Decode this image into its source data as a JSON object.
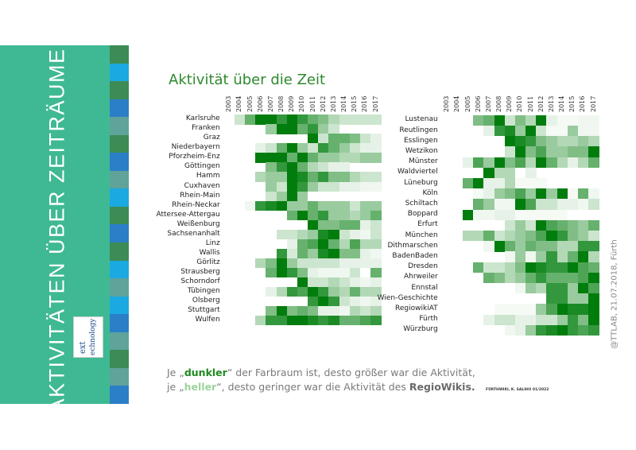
{
  "sidebar": {
    "title": "AKTIVITÄTEN ÜBER ZEITRÄUME",
    "logo_text": [
      "ext",
      "echnology"
    ],
    "background": "#3fb993",
    "stripe_colors": [
      "#3d8b55",
      "#1aa9e0",
      "#3d8b55",
      "#2b7fc7",
      "#5fa39a",
      "#3d8b55",
      "#2b7fc7",
      "#5fa39a",
      "#1aa9e0",
      "#3d8b55",
      "#2b7fc7",
      "#3d8b55",
      "#1aa9e0",
      "#5fa39a",
      "#1aa9e0",
      "#2b7fc7",
      "#5fa39a",
      "#3d8b55",
      "#5fa39a",
      "#2b7fc7"
    ]
  },
  "side_note": "@TTLAB, 21.07.2018, Fürth",
  "legend": {
    "l1_pre": "Je „",
    "l1_dark": "dunkler",
    "l1_post": "“ der Farbraum ist, desto größer war die Aktivität,",
    "l2_pre": "je „",
    "l2_light": "heller",
    "l2_mid": "“, desto geringer war die Aktivität des ",
    "l2_bold": "RegioWikis."
  },
  "credit": "FÜRTHWIKI, K. SALIHU 01/2022",
  "chart_data": [
    {
      "type": "heatmap",
      "title": "Aktivität über die Zeit",
      "scale": "0 (none) – 5 (highest activity), white to dark green",
      "colors": {
        "low": "#ffffff",
        "high": "#007d0c"
      },
      "x": [
        "2003",
        "2004",
        "2005",
        "2006",
        "2007",
        "2008",
        "2009",
        "2010",
        "2011",
        "2012",
        "2013",
        "2014",
        "2015",
        "2016",
        "2017"
      ],
      "rows": [
        {
          "name": "Karlsruhe",
          "values": [
            0,
            1,
            3,
            5,
            5,
            4,
            5,
            4,
            3,
            2.5,
            1.5,
            1,
            1,
            1,
            1
          ]
        },
        {
          "name": "Franken",
          "values": [
            0,
            0,
            0,
            0,
            2,
            5,
            5,
            3,
            4,
            2,
            1,
            0,
            0,
            0,
            0
          ]
        },
        {
          "name": "Graz",
          "values": [
            0,
            0,
            0,
            0,
            0,
            0,
            0,
            0,
            5,
            1,
            3,
            3,
            2.5,
            1,
            0.5
          ]
        },
        {
          "name": "Niederbayern",
          "values": [
            0,
            0,
            0,
            0.5,
            1,
            3,
            5,
            2,
            1,
            4,
            3,
            2,
            1,
            0.5,
            0.5
          ]
        },
        {
          "name": "Pforzheim-Enz",
          "values": [
            0,
            0,
            0,
            5,
            5,
            5,
            3,
            5,
            3,
            2,
            2,
            1.5,
            1.5,
            2,
            2
          ]
        },
        {
          "name": "Göttingen",
          "values": [
            0,
            0,
            0,
            0,
            2.5,
            4,
            5,
            3,
            1.5,
            1,
            0.5,
            0.5,
            0,
            0,
            0
          ]
        },
        {
          "name": "Hamm",
          "values": [
            0,
            0,
            0,
            1.5,
            2,
            2,
            5,
            4.5,
            3,
            4,
            2.5,
            2.5,
            1.5,
            1,
            1
          ]
        },
        {
          "name": "Cuxhaven",
          "values": [
            0,
            0,
            0,
            0,
            2,
            1,
            5,
            4,
            2,
            1,
            1,
            0.5,
            0.5,
            0.3,
            0.3
          ]
        },
        {
          "name": "Rhein-Main",
          "values": [
            0,
            0,
            0,
            0,
            1,
            2,
            5,
            2,
            0,
            0,
            0,
            0,
            0,
            0,
            0
          ]
        },
        {
          "name": "Rhein-Neckar",
          "values": [
            0,
            0,
            0.3,
            4,
            4.5,
            5,
            2,
            2,
            3,
            2,
            2,
            2,
            1,
            2,
            2
          ]
        },
        {
          "name": "Attersee-Attergau",
          "values": [
            0,
            0,
            0,
            0,
            0,
            0,
            3,
            5,
            3,
            4,
            2,
            2,
            1.5,
            2,
            3
          ]
        },
        {
          "name": "Weißenburg",
          "values": [
            0,
            0,
            0,
            0,
            0,
            0,
            0,
            0,
            5,
            2.5,
            2.5,
            3,
            3,
            0.5,
            1
          ]
        },
        {
          "name": "Sachsenanhalt",
          "values": [
            0,
            0,
            0,
            0,
            0,
            1,
            1,
            1.5,
            2,
            4.5,
            5,
            1,
            0.5,
            0.3,
            1
          ]
        },
        {
          "name": "Linz",
          "values": [
            0,
            0,
            0,
            0,
            0,
            0,
            0.5,
            3,
            3.5,
            5,
            3,
            1.5,
            3.5,
            1.5,
            1.5
          ]
        },
        {
          "name": "Wallis",
          "values": [
            0,
            0,
            0,
            0,
            0,
            4,
            0.8,
            3,
            2,
            4.5,
            5,
            2.5,
            2.5,
            0.5,
            0.3
          ]
        },
        {
          "name": "Görlitz",
          "values": [
            0,
            0,
            0,
            1.5,
            2.5,
            5,
            2,
            1,
            1,
            1,
            1,
            0.5,
            0.5,
            0.5,
            0.5
          ]
        },
        {
          "name": "Strausberg",
          "values": [
            0,
            0,
            0,
            0,
            3,
            5,
            4,
            2.5,
            0.5,
            0.3,
            0.3,
            0.3,
            1,
            0,
            3
          ]
        },
        {
          "name": "Schorndorf",
          "values": [
            0,
            0,
            0,
            0,
            0,
            0,
            0,
            5,
            1,
            1,
            1.5,
            1,
            0.5,
            0.3,
            0.5
          ]
        },
        {
          "name": "Tübingen",
          "values": [
            0,
            0,
            0,
            0,
            0.5,
            1.5,
            4,
            3.5,
            5,
            4,
            2,
            1.5,
            3,
            1.5,
            1.5
          ]
        },
        {
          "name": "Olsberg",
          "values": [
            0,
            0,
            0,
            0,
            0,
            0,
            0,
            0,
            4,
            5,
            4,
            1,
            0.5,
            0.3,
            0.5
          ]
        },
        {
          "name": "Stuttgart",
          "values": [
            0,
            0,
            0,
            0,
            2.5,
            5,
            2.5,
            3,
            2.5,
            0.5,
            0.5,
            0.3,
            1.5,
            1,
            1.5
          ]
        },
        {
          "name": "Wulfen",
          "values": [
            0,
            0,
            0,
            1.5,
            4,
            4,
            5,
            5,
            4.5,
            4,
            4.5,
            3,
            3,
            3.5,
            4
          ]
        }
      ]
    },
    {
      "type": "heatmap",
      "scale": "0 (none) – 5 (highest activity), white to dark green",
      "colors": {
        "low": "#ffffff",
        "high": "#007d0c"
      },
      "x": [
        "2003",
        "2004",
        "2005",
        "2006",
        "2007",
        "2008",
        "2009",
        "2010",
        "2011",
        "2012",
        "2013",
        "2014",
        "2015",
        "2016",
        "2017"
      ],
      "rows": [
        {
          "name": "Lustenau",
          "values": [
            0,
            0,
            0,
            2.5,
            3,
            5,
            1,
            2.5,
            1.5,
            5,
            0.5,
            0.2,
            0.2,
            0.3,
            0.3
          ]
        },
        {
          "name": "Reutlingen",
          "values": [
            0,
            0,
            0,
            0,
            0.5,
            4,
            4.5,
            2,
            5,
            1,
            0.2,
            0.2,
            2,
            0.3,
            0.3
          ]
        },
        {
          "name": "Esslingen",
          "values": [
            0,
            0,
            0,
            0,
            0,
            0,
            5,
            4.5,
            4,
            2.5,
            2,
            1.5,
            1.5,
            2,
            1.5
          ]
        },
        {
          "name": "Wetzikon",
          "values": [
            0,
            0,
            0,
            0,
            0,
            0,
            1,
            5,
            2.5,
            3.5,
            2,
            2,
            2.5,
            2.5,
            5
          ]
        },
        {
          "name": "Münster",
          "values": [
            0,
            0,
            0.5,
            3.5,
            2,
            5,
            2.5,
            3.5,
            1.5,
            5,
            3,
            1.5,
            0.5,
            1.5,
            3
          ]
        },
        {
          "name": "Waldviertel",
          "values": [
            0,
            0,
            0,
            0,
            5,
            1.5,
            1.5,
            0,
            0.5,
            0,
            0,
            0,
            0,
            0,
            0
          ]
        },
        {
          "name": "Lüneburg",
          "values": [
            0,
            0,
            3,
            5,
            0.5,
            0.5,
            1.5,
            0.2,
            0.2,
            0.2,
            0,
            0,
            0,
            0,
            0
          ]
        },
        {
          "name": "Köln",
          "values": [
            0,
            0,
            0,
            0.2,
            0.5,
            2,
            2.5,
            3.5,
            2,
            5,
            2,
            5,
            0.2,
            3,
            0.3
          ]
        },
        {
          "name": "Schiltach",
          "values": [
            0,
            0,
            0,
            3,
            2,
            0.3,
            0.3,
            5,
            3.5,
            1,
            1,
            0.5,
            0.5,
            0.3,
            1
          ]
        },
        {
          "name": "Boppard",
          "values": [
            0,
            0,
            5,
            0.3,
            0.3,
            0.5,
            0.5,
            0.2,
            0.2,
            0.2,
            0.2,
            0.2,
            0,
            0,
            0
          ]
        },
        {
          "name": "Erfurt",
          "values": [
            0,
            0,
            0,
            0,
            0,
            0,
            1,
            2,
            1,
            5,
            3.5,
            3,
            2.5,
            2,
            3
          ]
        },
        {
          "name": "München",
          "values": [
            0,
            0,
            1.5,
            1.5,
            3,
            1,
            1.5,
            2,
            2.5,
            3.5,
            5,
            4,
            2.5,
            2,
            1
          ]
        },
        {
          "name": "Dithmarschen",
          "values": [
            0,
            0,
            0,
            0,
            0.3,
            5,
            3,
            2,
            3,
            2.5,
            2.5,
            1.5,
            1.5,
            4,
            4
          ]
        },
        {
          "name": "BadenBaden",
          "values": [
            0,
            0,
            0,
            0,
            0,
            0,
            0.3,
            2,
            0.3,
            2,
            4,
            1.5,
            3,
            5,
            1.5
          ]
        },
        {
          "name": "Dresden",
          "values": [
            0,
            0,
            0,
            3,
            1,
            1,
            1.5,
            2.5,
            5,
            4.5,
            4,
            4,
            5,
            3.5,
            3
          ]
        },
        {
          "name": "Ahrweiler",
          "values": [
            0,
            0,
            0,
            0,
            3,
            2.5,
            1.5,
            2,
            3,
            4,
            3,
            3,
            3,
            3.5,
            5
          ]
        },
        {
          "name": "Ennstal",
          "values": [
            0,
            0,
            0,
            0,
            0,
            0,
            0,
            0.3,
            2,
            1.5,
            4,
            4,
            2,
            5,
            3.5
          ]
        },
        {
          "name": "Wien-Geschichte",
          "values": [
            0,
            0,
            0,
            0,
            0,
            0,
            0,
            0,
            0,
            0,
            4,
            4,
            2,
            2,
            5
          ]
        },
        {
          "name": "RegiowikiAT",
          "values": [
            0,
            0,
            0,
            0,
            0,
            0.2,
            0.2,
            0.2,
            0.2,
            2,
            3.5,
            5,
            4.5,
            4.5,
            5
          ]
        },
        {
          "name": "Fürth",
          "values": [
            0,
            0,
            0,
            0,
            0.5,
            1,
            1,
            0.5,
            0.5,
            1,
            1,
            2,
            4,
            2.5,
            5
          ]
        },
        {
          "name": "Würzburg",
          "values": [
            0,
            0,
            0,
            0,
            0,
            0,
            0.3,
            0.5,
            2,
            4,
            4.5,
            5,
            4,
            3.5,
            4
          ]
        }
      ]
    }
  ]
}
